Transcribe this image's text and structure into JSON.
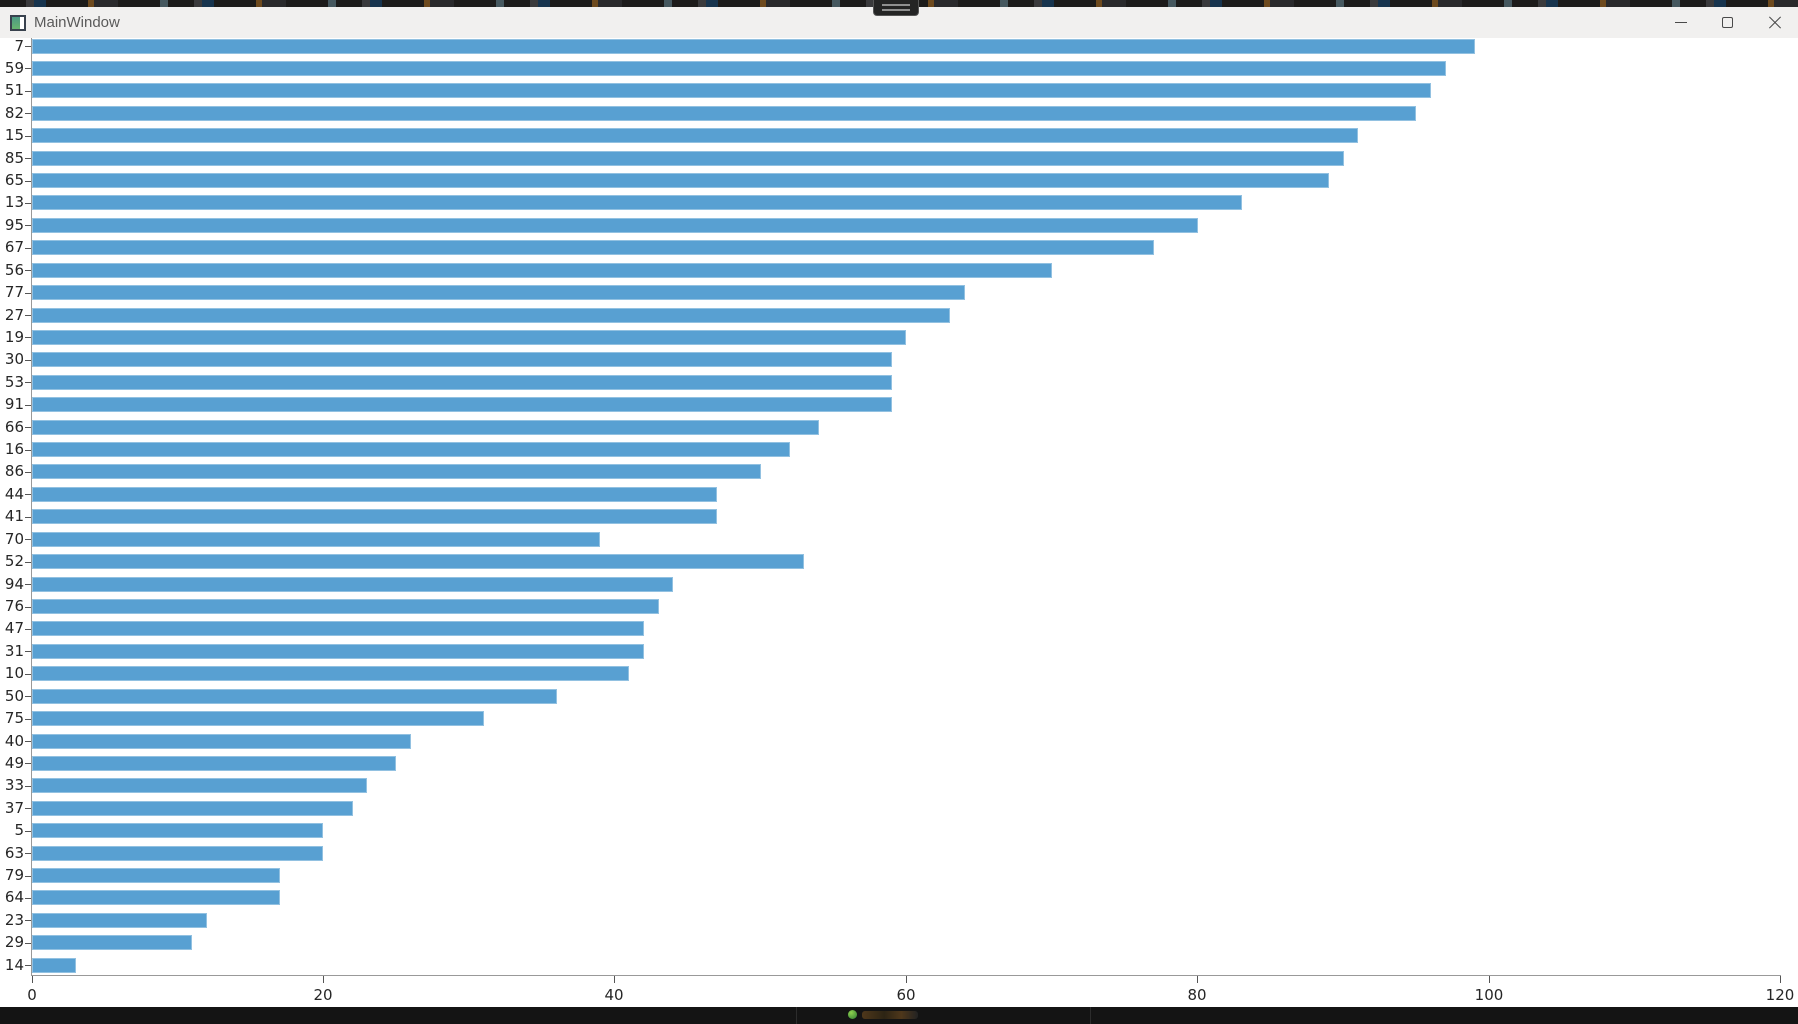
{
  "window": {
    "title": "MainWindow",
    "controls": [
      {
        "name": "minimize"
      },
      {
        "name": "maximize"
      },
      {
        "name": "close"
      }
    ]
  },
  "chart_data": {
    "type": "bar",
    "orientation": "horizontal",
    "title": "",
    "xlabel": "",
    "ylabel": "",
    "xlim": [
      0,
      120
    ],
    "x_ticks": [
      0,
      20,
      40,
      60,
      80,
      100,
      120
    ],
    "grid": false,
    "legend": null,
    "bar_color": "#58a0d2",
    "categories": [
      "7",
      "59",
      "51",
      "82",
      "15",
      "85",
      "65",
      "13",
      "95",
      "67",
      "56",
      "77",
      "27",
      "19",
      "30",
      "53",
      "91",
      "66",
      "16",
      "86",
      "44",
      "41",
      "70",
      "52",
      "94",
      "76",
      "47",
      "31",
      "10",
      "50",
      "75",
      "40",
      "49",
      "33",
      "37",
      "5",
      "63",
      "79",
      "64",
      "23",
      "29",
      "14"
    ],
    "values": [
      99,
      97,
      96,
      95,
      91,
      90,
      89,
      83,
      80,
      77,
      70,
      64,
      63,
      60,
      59,
      59,
      59,
      54,
      52,
      50,
      47,
      47,
      39,
      53,
      44,
      43,
      42,
      42,
      41,
      36,
      31,
      26,
      25,
      23,
      22,
      20,
      20,
      17,
      17,
      12,
      11,
      3
    ]
  },
  "colors": {
    "bar": "#58a0d2",
    "titlebar_bg": "#f1f0ef",
    "axis_spine": "#999999",
    "tick": "#555555",
    "tick_label": "#262626",
    "title_text": "#5a5a5a"
  }
}
